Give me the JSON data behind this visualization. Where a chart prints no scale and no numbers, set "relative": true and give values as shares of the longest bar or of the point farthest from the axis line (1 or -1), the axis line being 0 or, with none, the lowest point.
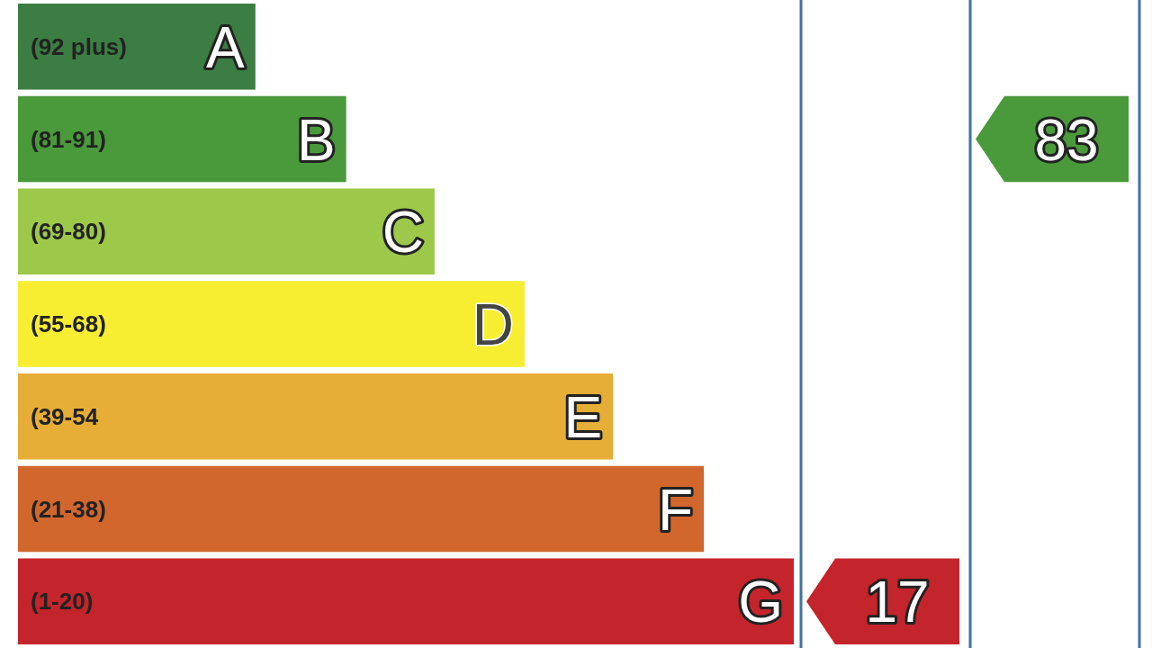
{
  "chart_data": {
    "type": "bar",
    "orientation": "horizontal",
    "relative": true,
    "categories": [
      "A",
      "B",
      "C",
      "D",
      "E",
      "F",
      "G"
    ],
    "values": [
      0.306,
      0.423,
      0.537,
      0.653,
      0.767,
      0.884,
      1
    ],
    "colors": [
      "#3b7d42",
      "#4a9a3c",
      "#9dc84a",
      "#f7ee32",
      "#e6ae36",
      "#d2672e",
      "#c4242b"
    ],
    "annotations": [
      "(92 plus)",
      "(81-91)",
      "(69-80)",
      "(55-68)",
      "(39-54",
      "(21-38)",
      "(1-20)",
      "17",
      "83"
    ]
  }
}
